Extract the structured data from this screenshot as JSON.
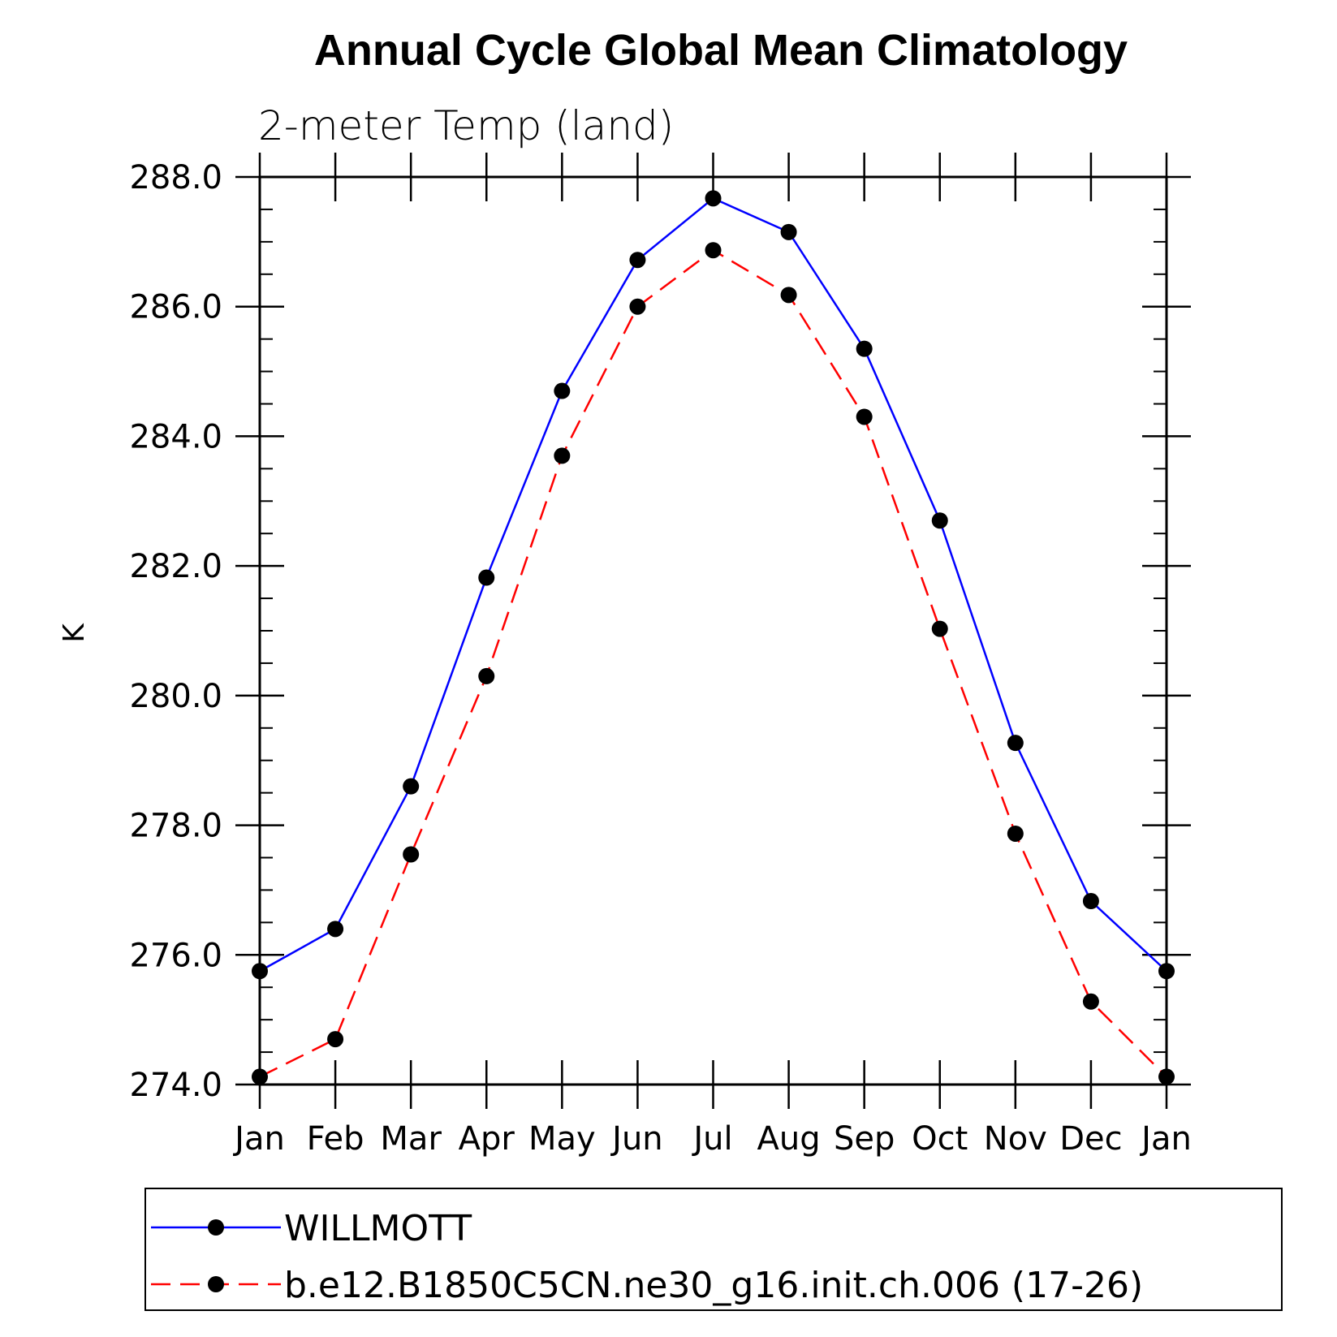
{
  "chart_data": {
    "type": "line",
    "title": "Annual Cycle Global Mean Climatology",
    "subtitle": "2-meter Temp (land)",
    "xlabel": "",
    "ylabel": "K",
    "categories": [
      "Jan",
      "Feb",
      "Mar",
      "Apr",
      "May",
      "Jun",
      "Jul",
      "Aug",
      "Sep",
      "Oct",
      "Nov",
      "Dec",
      "Jan"
    ],
    "ylim": [
      274.0,
      288.0
    ],
    "yticks": [
      "274.0",
      "276.0",
      "278.0",
      "280.0",
      "282.0",
      "284.0",
      "286.0",
      "288.0"
    ],
    "ytick_values": [
      274,
      276,
      278,
      280,
      282,
      284,
      286,
      288
    ],
    "y_minor_step": 0.5,
    "grid": false,
    "legend_position": "bottom",
    "series": [
      {
        "name": "WILLMOTT",
        "color": "#0000ff",
        "line_style": "solid",
        "marker": "filled-circle",
        "values": [
          275.75,
          276.4,
          278.6,
          281.82,
          284.7,
          286.72,
          287.67,
          287.15,
          285.35,
          282.7,
          279.27,
          276.83,
          275.75
        ]
      },
      {
        "name": "b.e12.B1850C5CN.ne30_g16.init.ch.006 (17-26)",
        "color": "#ff0000",
        "line_style": "dashed",
        "marker": "filled-circle",
        "values": [
          274.12,
          274.7,
          277.55,
          280.3,
          283.7,
          286.0,
          286.87,
          286.18,
          284.3,
          281.03,
          277.87,
          275.28,
          274.12
        ]
      }
    ]
  }
}
